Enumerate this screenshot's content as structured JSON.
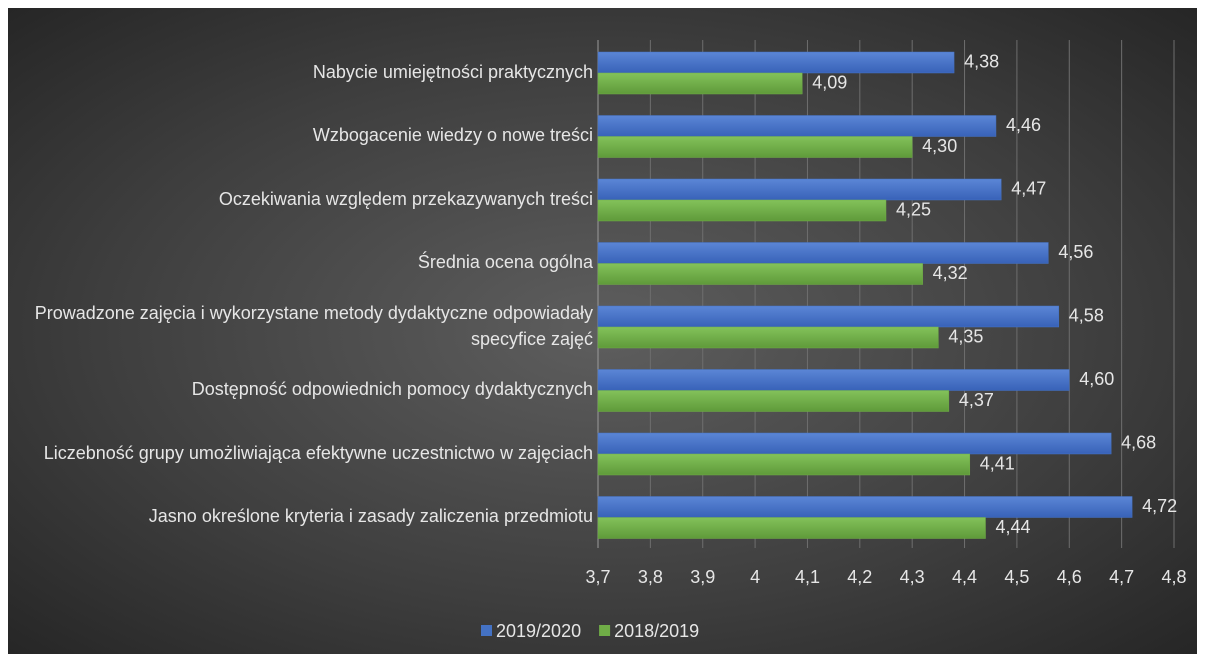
{
  "chart_data": {
    "type": "bar",
    "orientation": "horizontal",
    "categories": [
      "Nabycie umiejętności praktycznych",
      "Wzbogacenie wiedzy o nowe treści",
      "Oczekiwania względem przekazywanych treści",
      "Średnia ocena ogólna",
      "Prowadzone zajęcia i wykorzystane metody dydaktyczne odpowiadały specyfice zajęć",
      "Dostępność odpowiednich pomocy dydaktycznych",
      "Liczebność grupy umożliwiająca efektywne uczestnictwo w zajęciach",
      "Jasno określone kryteria i zasady zaliczenia przedmiotu"
    ],
    "series": [
      {
        "name": "2019/2020",
        "color": "#4472c4",
        "values": [
          4.38,
          4.46,
          4.47,
          4.56,
          4.58,
          4.6,
          4.68,
          4.72
        ],
        "value_labels": [
          "4,38",
          "4,46",
          "4,47",
          "4,56",
          "4,58",
          "4,60",
          "4,68",
          "4,72"
        ]
      },
      {
        "name": "2018/2019",
        "color": "#70ad47",
        "values": [
          4.09,
          4.3,
          4.25,
          4.32,
          4.35,
          4.37,
          4.41,
          4.44
        ],
        "value_labels": [
          "4,09",
          "4,30",
          "4,25",
          "4,32",
          "4,35",
          "4,37",
          "4,41",
          "4,44"
        ]
      }
    ],
    "xlim": [
      3.7,
      4.8
    ],
    "xticks": [
      {
        "value": 3.7,
        "label": "3,7"
      },
      {
        "value": 3.8,
        "label": "3,8"
      },
      {
        "value": 3.9,
        "label": "3,9"
      },
      4,
      {
        "value": 4.1,
        "label": "4,1"
      },
      {
        "value": 4.2,
        "label": "4,2"
      },
      {
        "value": 4.3,
        "label": "4,3"
      },
      {
        "value": 4.4,
        "label": "4,4"
      },
      {
        "value": 4.5,
        "label": "4,5"
      },
      {
        "value": 4.6,
        "label": "4,6"
      },
      {
        "value": 4.7,
        "label": "4,7"
      },
      {
        "value": 4.8,
        "label": "4,8"
      }
    ],
    "grid": true,
    "legend": "bottom"
  }
}
